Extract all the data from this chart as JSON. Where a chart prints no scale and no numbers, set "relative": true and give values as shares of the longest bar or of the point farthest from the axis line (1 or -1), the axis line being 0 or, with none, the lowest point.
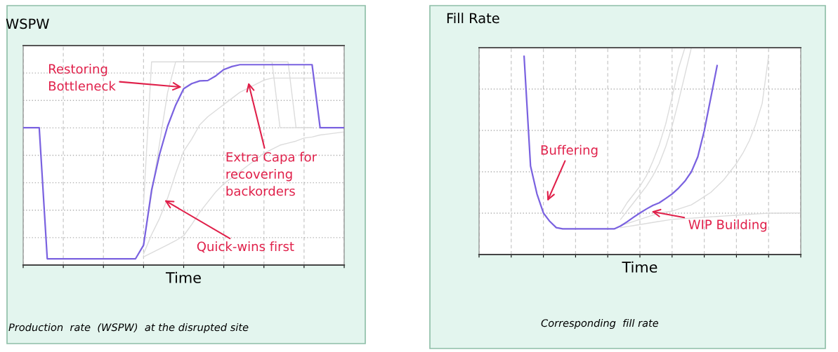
{
  "chart_data": [
    {
      "type": "line",
      "title": "WSPW",
      "xlabel": "Time",
      "relative": true,
      "grid": true,
      "tick_labels": false,
      "categories": [
        null,
        null,
        null,
        null,
        null,
        null,
        null,
        null,
        null,
        null,
        null,
        null,
        null,
        null,
        null,
        null,
        null,
        null,
        null,
        null,
        null,
        null,
        null,
        null,
        null,
        null,
        null,
        null,
        null,
        null,
        null,
        null,
        null,
        null,
        null,
        null,
        null,
        null,
        null,
        null,
        null
      ],
      "series": [
        {
          "color": "#dcdcdc",
          "values": [
            null,
            null,
            null,
            null,
            null,
            null,
            null,
            null,
            null,
            null,
            null,
            null,
            null,
            null,
            null,
            0.3,
            1.0,
            1.0,
            1.0,
            1.0,
            1.0,
            1.0,
            1.0,
            1.0,
            1.0,
            1.0,
            1.0,
            1.0,
            1.0,
            1.0,
            1.0,
            1.0,
            1.0,
            1.0,
            0.676,
            0.676,
            0.676,
            null,
            null,
            null,
            null
          ]
        },
        {
          "color": "#dcdcdc",
          "values": [
            null,
            null,
            null,
            null,
            null,
            null,
            null,
            null,
            null,
            null,
            null,
            null,
            null,
            null,
            null,
            0.1,
            0.35,
            0.6,
            0.85,
            1.0,
            1.0,
            1.0,
            1.0,
            1.0,
            1.0,
            1.0,
            1.0,
            1.0,
            1.0,
            1.0,
            1.0,
            1.0,
            0.676,
            0.676,
            0.676,
            0.676,
            0.676,
            null,
            null,
            null,
            null
          ]
        },
        {
          "color": "#dcdcdc",
          "values": [
            null,
            null,
            null,
            null,
            null,
            null,
            null,
            null,
            null,
            null,
            null,
            null,
            null,
            null,
            null,
            0.055,
            0.15,
            0.23,
            0.33,
            0.45,
            0.56,
            0.62,
            0.69,
            0.73,
            0.76,
            0.79,
            0.82,
            0.85,
            0.87,
            0.89,
            0.91,
            0.92,
            0.92,
            0.92,
            0.92,
            0.92,
            0.92,
            0.92,
            0.92,
            0.92,
            0.92
          ]
        },
        {
          "color": "#dcdcdc",
          "values": [
            null,
            null,
            null,
            null,
            null,
            null,
            null,
            null,
            null,
            null,
            null,
            null,
            null,
            null,
            null,
            0.04,
            0.06,
            0.08,
            0.1,
            0.12,
            0.145,
            0.2,
            0.26,
            0.31,
            0.36,
            0.4,
            0.43,
            0.46,
            0.49,
            0.52,
            0.55,
            0.57,
            0.59,
            0.6,
            0.61,
            0.625,
            0.63,
            0.64,
            0.645,
            0.65,
            0.655
          ]
        },
        {
          "color": "#7a62e0",
          "values": [
            0.676,
            0.676,
            0.676,
            0.031,
            0.031,
            0.031,
            0.031,
            0.031,
            0.031,
            0.031,
            0.031,
            0.031,
            0.031,
            0.031,
            0.031,
            0.098,
            0.368,
            0.546,
            0.684,
            0.787,
            0.868,
            0.893,
            0.906,
            0.908,
            0.931,
            0.962,
            0.977,
            0.986,
            0.986,
            0.986,
            0.986,
            0.986,
            0.986,
            0.986,
            0.986,
            0.986,
            0.986,
            0.676,
            0.676,
            0.676,
            0.676
          ]
        }
      ],
      "annotations": [
        "Restoring\nBottleneck",
        "Extra Capa for\nrecovering\nbackorders",
        "Quick-wins first",
        "Production  rate  (WSPW)  at the disrupted site"
      ]
    },
    {
      "type": "line",
      "title": "Fill Rate",
      "xlabel": "Time",
      "relative": true,
      "grid": true,
      "tick_labels": false,
      "categories": [
        null,
        null,
        null,
        null,
        null,
        null,
        null,
        null,
        null,
        null,
        null,
        null,
        null,
        null,
        null,
        null,
        null,
        null,
        null,
        null,
        null,
        null,
        null,
        null,
        null,
        null,
        null,
        null,
        null,
        null,
        null,
        null,
        null,
        null,
        null,
        null,
        null,
        null,
        null,
        null,
        null,
        null,
        null,
        null,
        null,
        null,
        null,
        null,
        null,
        null,
        null
      ],
      "series": [
        {
          "color": "#dcdcdc",
          "values": [
            null,
            null,
            null,
            null,
            null,
            null,
            null,
            null,
            null,
            null,
            null,
            null,
            null,
            null,
            null,
            null,
            null,
            null,
            null,
            null,
            null,
            null,
            0.2,
            0.25,
            0.29,
            0.33,
            0.38,
            0.45,
            0.53,
            0.63,
            0.76,
            0.9,
            1.0,
            null,
            null,
            null,
            null,
            null,
            null,
            null,
            null,
            null,
            null,
            null,
            null,
            null,
            null,
            null,
            null,
            null,
            null
          ]
        },
        {
          "color": "#dcdcdc",
          "values": [
            null,
            null,
            null,
            null,
            null,
            null,
            null,
            null,
            null,
            null,
            null,
            null,
            null,
            null,
            null,
            null,
            null,
            null,
            null,
            null,
            null,
            null,
            0.17,
            0.21,
            0.25,
            0.29,
            0.33,
            0.38,
            0.44,
            0.52,
            0.62,
            0.74,
            0.87,
            1.0,
            null,
            null,
            null,
            null,
            null,
            null,
            null,
            null,
            null,
            null,
            null,
            null,
            null,
            null,
            null,
            null,
            null
          ]
        },
        {
          "color": "#dcdcdc",
          "values": [
            null,
            null,
            null,
            null,
            null,
            null,
            null,
            null,
            null,
            null,
            null,
            null,
            null,
            null,
            null,
            null,
            null,
            null,
            null,
            null,
            null,
            null,
            0.14,
            0.15,
            0.16,
            0.17,
            0.18,
            0.19,
            0.2,
            0.205,
            0.21,
            0.22,
            0.23,
            0.24,
            0.26,
            0.28,
            0.3,
            0.33,
            0.36,
            0.4,
            0.44,
            0.49,
            0.55,
            0.63,
            0.73,
            0.96,
            null,
            null,
            null,
            null,
            null
          ]
        },
        {
          "color": "#dcdcdc",
          "values": [
            null,
            null,
            null,
            null,
            null,
            null,
            null,
            null,
            null,
            null,
            null,
            null,
            null,
            null,
            null,
            null,
            null,
            null,
            null,
            null,
            null,
            null,
            0.13,
            0.135,
            0.14,
            0.145,
            0.15,
            0.155,
            0.16,
            0.165,
            0.17,
            0.172,
            0.174,
            0.176,
            0.178,
            0.18,
            0.182,
            0.184,
            0.186,
            0.188,
            0.19,
            0.192,
            0.194,
            0.196,
            0.198,
            0.2,
            0.2,
            0.2,
            0.201,
            0.201,
            0.201
          ]
        },
        {
          "color": "#7a62e0",
          "values": [
            null,
            null,
            null,
            null,
            null,
            null,
            null,
            0.958,
            0.428,
            0.293,
            0.201,
            0.16,
            0.13,
            0.124,
            0.124,
            0.124,
            0.124,
            0.124,
            0.124,
            0.124,
            0.124,
            0.124,
            0.138,
            0.158,
            0.18,
            0.201,
            0.22,
            0.237,
            0.25,
            0.271,
            0.293,
            0.321,
            0.355,
            0.4,
            0.473,
            0.598,
            0.755,
            0.913,
            null,
            null,
            null,
            null,
            null,
            null,
            null,
            null,
            null,
            null,
            null,
            null,
            null
          ]
        }
      ],
      "annotations": [
        "Buffering",
        "WIP Building",
        "Corresponding  fill rate"
      ]
    }
  ]
}
